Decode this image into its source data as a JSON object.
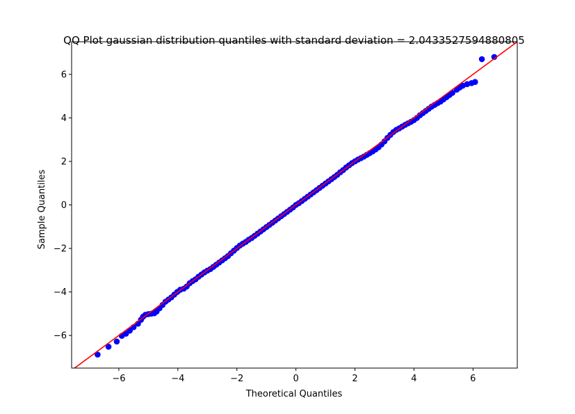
{
  "chart_data": {
    "type": "scatter",
    "title": "QQ Plot gaussian distribution quantiles with standard deviation = 2.0433527594880805",
    "xlabel": "Theoretical Quantiles",
    "ylabel": "Sample Quantiles",
    "xlim": [
      -7.6,
      7.5
    ],
    "ylim": [
      -7.5,
      7.5
    ],
    "xticks": [
      -6,
      -4,
      -2,
      0,
      2,
      4,
      6
    ],
    "yticks": [
      -6,
      -4,
      -2,
      0,
      2,
      4,
      6
    ],
    "xtick_labels": [
      "−6",
      "−4",
      "−2",
      "0",
      "2",
      "4",
      "6"
    ],
    "ytick_labels": [
      "−6",
      "−4",
      "−2",
      "0",
      "2",
      "4",
      "6"
    ],
    "grid": false,
    "reference_line": {
      "slope": 1,
      "intercept": 0,
      "color": "#ff0000"
    },
    "series": [
      {
        "color": "#0000ff",
        "points": [
          [
            -6.72,
            -6.88
          ],
          [
            -6.35,
            -6.52
          ],
          [
            -6.07,
            -6.28
          ],
          [
            -5.9,
            -6.02
          ],
          [
            -5.76,
            -5.92
          ],
          [
            -5.63,
            -5.78
          ],
          [
            -5.5,
            -5.62
          ],
          [
            -5.35,
            -5.46
          ],
          [
            -5.25,
            -5.28
          ],
          [
            -5.18,
            -5.14
          ],
          [
            -5.1,
            -5.05
          ],
          [
            -5.0,
            -5.02
          ],
          [
            -4.9,
            -5.0
          ],
          [
            -4.8,
            -4.98
          ],
          [
            -4.72,
            -4.9
          ],
          [
            -4.62,
            -4.75
          ],
          [
            -4.52,
            -4.6
          ],
          [
            -4.42,
            -4.45
          ],
          [
            -4.32,
            -4.35
          ],
          [
            -4.22,
            -4.25
          ],
          [
            -4.12,
            -4.12
          ],
          [
            -4.02,
            -4.0
          ],
          [
            -3.92,
            -3.9
          ],
          [
            -3.8,
            -3.85
          ],
          [
            -3.7,
            -3.75
          ],
          [
            -3.6,
            -3.6
          ],
          [
            -3.5,
            -3.5
          ],
          [
            -3.4,
            -3.42
          ],
          [
            -3.3,
            -3.3
          ],
          [
            -3.2,
            -3.2
          ],
          [
            -3.1,
            -3.1
          ],
          [
            -3.0,
            -3.02
          ],
          [
            -2.9,
            -2.95
          ],
          [
            -2.8,
            -2.85
          ],
          [
            -2.7,
            -2.75
          ],
          [
            -2.6,
            -2.65
          ],
          [
            -2.5,
            -2.55
          ],
          [
            -2.4,
            -2.45
          ],
          [
            -2.3,
            -2.35
          ],
          [
            -2.2,
            -2.22
          ],
          [
            -2.1,
            -2.1
          ],
          [
            -2.0,
            -1.98
          ],
          [
            -1.9,
            -1.87
          ],
          [
            -1.8,
            -1.78
          ],
          [
            -1.7,
            -1.7
          ],
          [
            -1.6,
            -1.6
          ],
          [
            -1.5,
            -1.52
          ],
          [
            -1.4,
            -1.42
          ],
          [
            -1.3,
            -1.32
          ],
          [
            -1.2,
            -1.22
          ],
          [
            -1.1,
            -1.12
          ],
          [
            -1.0,
            -1.02
          ],
          [
            -0.9,
            -0.92
          ],
          [
            -0.8,
            -0.82
          ],
          [
            -0.7,
            -0.72
          ],
          [
            -0.6,
            -0.62
          ],
          [
            -0.5,
            -0.52
          ],
          [
            -0.4,
            -0.42
          ],
          [
            -0.3,
            -0.32
          ],
          [
            -0.2,
            -0.22
          ],
          [
            -0.1,
            -0.12
          ],
          [
            0.0,
            0.0
          ],
          [
            0.1,
            0.08
          ],
          [
            0.2,
            0.18
          ],
          [
            0.3,
            0.28
          ],
          [
            0.4,
            0.38
          ],
          [
            0.5,
            0.48
          ],
          [
            0.6,
            0.58
          ],
          [
            0.7,
            0.68
          ],
          [
            0.8,
            0.78
          ],
          [
            0.9,
            0.88
          ],
          [
            1.0,
            0.98
          ],
          [
            1.1,
            1.08
          ],
          [
            1.2,
            1.18
          ],
          [
            1.3,
            1.28
          ],
          [
            1.4,
            1.38
          ],
          [
            1.5,
            1.5
          ],
          [
            1.6,
            1.6
          ],
          [
            1.7,
            1.72
          ],
          [
            1.8,
            1.82
          ],
          [
            1.9,
            1.92
          ],
          [
            2.0,
            2.0
          ],
          [
            2.1,
            2.08
          ],
          [
            2.2,
            2.15
          ],
          [
            2.3,
            2.22
          ],
          [
            2.4,
            2.3
          ],
          [
            2.5,
            2.38
          ],
          [
            2.6,
            2.46
          ],
          [
            2.7,
            2.55
          ],
          [
            2.8,
            2.65
          ],
          [
            2.9,
            2.78
          ],
          [
            3.0,
            2.92
          ],
          [
            3.1,
            3.08
          ],
          [
            3.2,
            3.22
          ],
          [
            3.3,
            3.35
          ],
          [
            3.4,
            3.45
          ],
          [
            3.5,
            3.52
          ],
          [
            3.6,
            3.6
          ],
          [
            3.7,
            3.68
          ],
          [
            3.8,
            3.75
          ],
          [
            3.9,
            3.82
          ],
          [
            4.0,
            3.9
          ],
          [
            4.1,
            4.0
          ],
          [
            4.2,
            4.12
          ],
          [
            4.3,
            4.22
          ],
          [
            4.4,
            4.32
          ],
          [
            4.5,
            4.42
          ],
          [
            4.6,
            4.52
          ],
          [
            4.7,
            4.6
          ],
          [
            4.8,
            4.68
          ],
          [
            4.9,
            4.75
          ],
          [
            5.0,
            4.85
          ],
          [
            5.1,
            4.95
          ],
          [
            5.2,
            5.05
          ],
          [
            5.3,
            5.15
          ],
          [
            5.45,
            5.3
          ],
          [
            5.55,
            5.4
          ],
          [
            5.65,
            5.48
          ],
          [
            5.8,
            5.55
          ],
          [
            5.95,
            5.6
          ],
          [
            6.07,
            5.65
          ],
          [
            6.3,
            6.7
          ],
          [
            6.72,
            6.8
          ]
        ]
      }
    ]
  }
}
